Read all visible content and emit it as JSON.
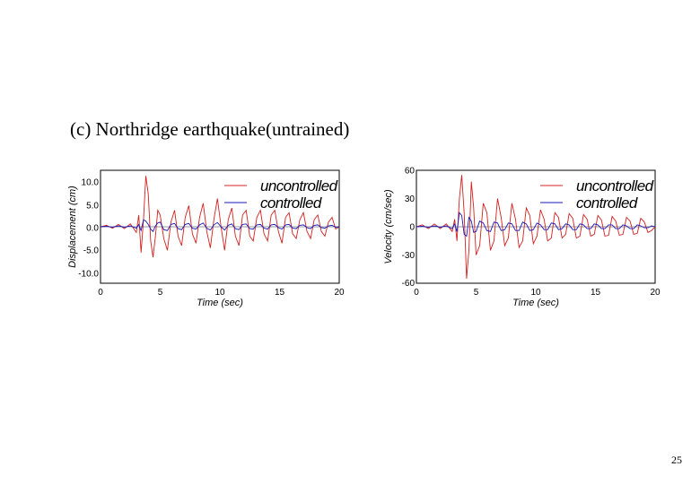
{
  "slide": {
    "title": "(c) Northridge earthquake(untrained)",
    "page_number": "25"
  },
  "colors": {
    "uncontrolled": "#d42020",
    "controlled": "#1a1ab8",
    "frame": "#000000",
    "zero_line": "#333333"
  },
  "chart_data": [
    {
      "type": "line",
      "title": "",
      "xlabel": "Time (sec)",
      "ylabel": "Displacement (cm)",
      "xlim": [
        0,
        20
      ],
      "ylim": [
        -12,
        12
      ],
      "xticks": [
        0,
        5,
        10,
        15,
        20
      ],
      "xtick_labels": [
        "0",
        "5",
        "10",
        "15",
        "20"
      ],
      "yticks": [
        10,
        5,
        0,
        -5,
        -10
      ],
      "ytick_labels": [
        "10.0",
        "5.0",
        "0.0",
        "-5.0",
        "-10.0"
      ],
      "legend": {
        "position": "top-right",
        "entries": [
          "uncontrolled",
          "controlled"
        ]
      },
      "x": [
        0,
        0.5,
        1,
        1.5,
        2,
        2.5,
        3,
        3.2,
        3.4,
        3.6,
        3.8,
        4,
        4.2,
        4.4,
        4.6,
        4.8,
        5,
        5.3,
        5.6,
        5.9,
        6.2,
        6.5,
        6.8,
        7.1,
        7.4,
        7.7,
        8,
        8.3,
        8.6,
        8.9,
        9.2,
        9.5,
        9.8,
        10.1,
        10.4,
        10.7,
        11,
        11.3,
        11.6,
        11.9,
        12.2,
        12.5,
        12.8,
        13.1,
        13.4,
        13.7,
        14,
        14.3,
        14.6,
        14.9,
        15.2,
        15.5,
        15.8,
        16.1,
        16.4,
        16.7,
        17,
        17.3,
        17.6,
        17.9,
        18.2,
        18.5,
        18.8,
        19.1,
        19.4,
        19.7,
        20
      ],
      "series": [
        {
          "name": "uncontrolled",
          "values": [
            0,
            0.3,
            -0.3,
            0.5,
            -0.4,
            0.6,
            -1.2,
            2.5,
            -5.5,
            1.5,
            10.8,
            7,
            -3,
            -6.5,
            -2,
            3.5,
            2.5,
            -2.5,
            -5,
            1,
            3.5,
            -2,
            -4,
            2,
            4.5,
            -1.5,
            -3.5,
            2,
            5,
            -1,
            -4.5,
            1.5,
            6,
            0,
            -5,
            1.5,
            4,
            -2,
            -4,
            2.5,
            3.5,
            -2,
            -3,
            2,
            3.5,
            -1.5,
            -3,
            2.5,
            3.5,
            -1,
            -3.5,
            2,
            3,
            -1.5,
            -2.5,
            1.5,
            3,
            -1,
            -2.5,
            1.5,
            2.5,
            -1,
            -2,
            1,
            2,
            -0.5,
            0
          ]
        },
        {
          "name": "controlled",
          "values": [
            0,
            0.1,
            -0.1,
            0.2,
            -0.1,
            0.2,
            -0.3,
            0.5,
            -0.8,
            1.5,
            1.2,
            0.5,
            -0.5,
            -1,
            0.2,
            0.8,
            1,
            -0.6,
            -0.8,
            0.5,
            0.7,
            -0.4,
            -0.6,
            0.5,
            0.7,
            -0.3,
            -0.5,
            0.4,
            0.8,
            -0.3,
            -0.7,
            0.4,
            0.9,
            0,
            -0.7,
            0.3,
            0.6,
            -0.4,
            -0.6,
            0.5,
            0.6,
            -0.4,
            -0.5,
            0.4,
            0.5,
            -0.3,
            -0.5,
            0.4,
            0.5,
            -0.2,
            -0.5,
            0.4,
            0.5,
            -0.3,
            -0.4,
            0.3,
            0.4,
            -0.2,
            -0.4,
            0.3,
            0.4,
            -0.2,
            -0.3,
            0.2,
            0.3,
            -0.1,
            0
          ]
        }
      ]
    },
    {
      "type": "line",
      "title": "",
      "xlabel": "Time (sec)",
      "ylabel": "Velocity (cm/sec)",
      "xlim": [
        0,
        20
      ],
      "ylim": [
        -60,
        60
      ],
      "xticks": [
        0,
        5,
        10,
        15,
        20
      ],
      "xtick_labels": [
        "0",
        "5",
        "10",
        "15",
        "20"
      ],
      "yticks": [
        60,
        30,
        0,
        -30,
        -60
      ],
      "ytick_labels": [
        "60",
        "30",
        "0",
        "-30",
        "-60"
      ],
      "legend": {
        "position": "top-right",
        "entries": [
          "uncontrolled",
          "controlled"
        ]
      },
      "x": [
        0,
        0.5,
        1,
        1.5,
        2,
        2.5,
        3,
        3.2,
        3.4,
        3.6,
        3.8,
        4,
        4.2,
        4.4,
        4.6,
        4.8,
        5,
        5.3,
        5.6,
        5.9,
        6.2,
        6.5,
        6.8,
        7.1,
        7.4,
        7.7,
        8,
        8.3,
        8.6,
        8.9,
        9.2,
        9.5,
        9.8,
        10.1,
        10.4,
        10.7,
        11,
        11.3,
        11.6,
        11.9,
        12.2,
        12.5,
        12.8,
        13.1,
        13.4,
        13.7,
        14,
        14.3,
        14.6,
        14.9,
        15.2,
        15.5,
        15.8,
        16.1,
        16.4,
        16.7,
        17,
        17.3,
        17.6,
        17.9,
        18.2,
        18.5,
        18.8,
        19.1,
        19.4,
        19.7,
        20
      ],
      "series": [
        {
          "name": "uncontrolled",
          "values": [
            0,
            2,
            -2,
            3,
            -2,
            3,
            -5,
            8,
            -15,
            30,
            55,
            15,
            -55,
            -25,
            48,
            20,
            -30,
            -20,
            25,
            15,
            -25,
            -15,
            30,
            10,
            -20,
            -12,
            25,
            8,
            -22,
            -15,
            20,
            12,
            -18,
            -10,
            18,
            8,
            -15,
            -12,
            15,
            10,
            -12,
            -8,
            14,
            9,
            -12,
            -10,
            13,
            8,
            -10,
            -8,
            12,
            7,
            -10,
            -9,
            11,
            6,
            -9,
            -8,
            10,
            6,
            -8,
            -7,
            9,
            5,
            -6,
            -4,
            0
          ]
        },
        {
          "name": "controlled",
          "values": [
            0,
            0.5,
            -0.5,
            1,
            -0.5,
            1,
            -2,
            3,
            -5,
            15,
            12,
            -8,
            -10,
            10,
            6,
            -6,
            -5,
            6,
            4,
            -4,
            -5,
            5,
            4,
            -4,
            -3,
            4,
            3,
            -4,
            -4,
            5,
            3,
            -4,
            -3,
            4,
            2,
            -3,
            -3,
            4,
            3,
            -3,
            -2,
            3,
            2,
            -3,
            -3,
            3,
            2,
            -2,
            -2,
            3,
            2,
            -2,
            -2,
            2,
            2,
            -2,
            -2,
            2,
            1,
            -2,
            -2,
            2,
            1,
            -1,
            -1,
            1,
            0
          ]
        }
      ]
    }
  ]
}
